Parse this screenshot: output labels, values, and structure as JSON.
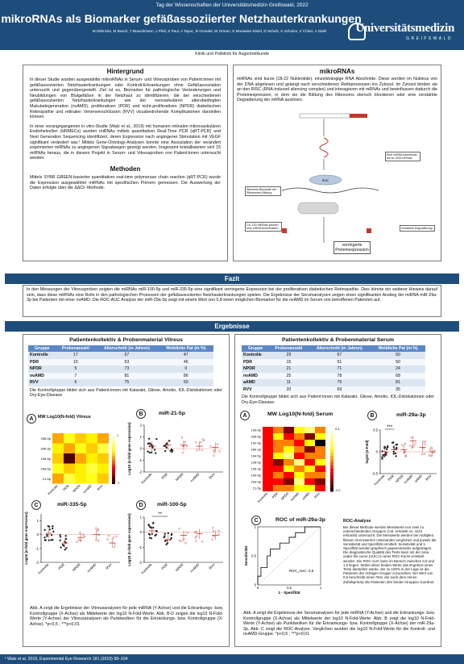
{
  "header": {
    "conference": "Tag der Wissenschaften der Universitätsmedizin Greifswald, 2022",
    "title": "mikroRNAs als Biomarker gefäßassoziierter Netzhauterkrankungen",
    "authors": "M Dähncke, M Busch, T Brauckmann, J Pfeil, S Paul, A Tayar,, B Grundel, W Omran, E Morawiec-Kisiel, D Schulz, K Schulze, V Chisci, A Stahl",
    "logo_name": "Universitätsmedizin",
    "logo_sub": "GREIFSWALD",
    "clinic": "Klinik und Poliklinik für Augenheilkunde"
  },
  "hintergrund": {
    "title": "Hintergrund",
    "p1": "In dieser Studie wurden ausgewählte mikroRNAs in Serum- und Vitreusproben von Patient:innen mit gefäßassoziierten Netzhauterkrankungen oder Kontroll-Erkrankungen ohne Gefäßassoziation untersucht und gegenübergestellt. Ziel ist es, Biomarker für pathologische Veränderungen und Neubildungen von Blutgefäßen in der Netzhaut zu identifizieren, die bei verschiedenen gefäßassoziierten Netzhauterkrankungen wie der neovaskulären altersbedingten Makuladegeneration (nvAMD), proliferativen (PDR) und nicht-proliferativen (NPDR) diabetischen Retinopathie und retinalen Venenverschlüssen (RVV) visusbedrohende Komplikationen darstellen können.",
    "p2": "In einer vorangegangenen in vitro-Studie (Walz et al., 2019) mit humanen retinalen mikrovaskulären Endothelzellen (HRMECs) wurden miRNAs mittels quantitativer Real-Time PCR (qRT-PCR) und Next Generation Sequencing identifiziert, deren Expression nach angiogener Stimulation mit VEGF signifikant verändert war.¹ Mittels Gene-Ontology-Analysen konnte eine Assoziation der verändert exprimierten miRNAs zu angiogenen Signalwegen gezeigt werden. Insgesamt kristallisierten sich 15 miRNAs heraus, die in diesem Projekt in Serum- und Vitreusproben von Patient:innen untersucht werden."
  },
  "methoden": {
    "title": "Methoden",
    "p1": "Mittels SYBR GREEN-basierter quantitativer real-time polymerase chain reaction (qRT-PCR) wurde die Expression ausgewählter miRNAs mit spezifischen Primern gemessen. Die Auswertung der Daten erfolgte über die ΔΔCt- Methode."
  },
  "mikrornas": {
    "title": "mikroRNAs",
    "p1": "miRNAs sind kurze (18-22 Nukleotide), einzelsträngige RNA Abschnitte. Diese werden im Nukleus von der DNA abgelesen und gelangt nach verschiedenen Reifeprozessen ins Zytosol. Im Zytosol binden sie an den RISC (RNA-induced silencing complex) und interagieren mit mRNAs und beeinflussen dadurch die Proteinexpression, in dem sie die Bildung des Ribosoms sterisch blockieren oder eine verstärkte Degradierung der mRNA auslösen.",
    "lbl1": "Eine miRNA beeinflusst bis zu 1000 mRNAs",
    "lbl2": "Sterische Blockade der Ribosomen-Bildung",
    "lbl3": "Ca. 100 miRNAs können eine mRNA beeinflussen",
    "lbl4": "verstärkte Degradierung",
    "risc": "RISC",
    "result": "verringerte Proteinexpression"
  },
  "fazit": {
    "title": "Fazit",
    "text": "In den Messungen der Vitreusproben zeigten die miRNAs miR-100-5p und miR-335-5p eine signifikant verringerte Expression bei der proliferativen diabetischen Retinopathie. Dies könnte ein weiterer Hinweis darauf sein, dass diese miRNAs eine Rolle in den pathologischen Prozessen der gefäßassoziierten Netzhauterkrankungen spielen. Die Ergebnisse der Serumanalysen zeigen einen signifikanten Anstieg der miRNA miR-29a-3p bei Patienten mit einer nvAMD. Die ROC-AUC Analyse der miR-29a-3p zeigt mit einem Wert von 0,8 einen möglichen Biomarker für die nvAMD im Serum von betroffenen Patienten auf."
  },
  "ergebnisse": {
    "title": "Ergebnisse"
  },
  "vitreal": {
    "title": "Patientenkollektiv & Probenmaterial Vitreus",
    "headers": [
      "Gruppe",
      "Probenanzahl",
      "Alterschnitt (in Jahren)",
      "Weibliche Pat (in %)"
    ],
    "rows": [
      [
        "Kontrolle",
        "17",
        "67",
        "47"
      ],
      [
        "PDR",
        "15",
        "53",
        "46"
      ],
      [
        "NPDR",
        "5",
        "73",
        "0"
      ],
      [
        "nvAMD",
        "7",
        "81",
        "86"
      ],
      [
        "RVV",
        "6",
        "75",
        "50"
      ]
    ],
    "note": "Die Kontrollgruppe bildet sich aus Patient:innen mit Katarakt, Gliose, Amotio, IOL-Dislokationen oder Dry-Eye-Disease.",
    "heatmap_title": "MW Log10(N-fold) Vitreus",
    "heat_rows": [
      "338-5p",
      "29b-3p",
      "19d-5p",
      "29a-5p",
      "21-5p"
    ],
    "groups": [
      "Kontrolle",
      "PDR",
      "NPDR",
      "nvAMD",
      "RVV"
    ],
    "b_title": "miR-21-5p",
    "c_title": "miR-335-5p",
    "d_title": "miR-100-5p",
    "ylabel": "Log10 (n-fold gene expression)",
    "sig": "**",
    "caption": "Abb. A zeigt die Ergebnisse der Vitreusanalysen für jede miRNA (Y-Achse) und die Erkrankungs- bzw. Kontrollgruppe (X-Achse) als Mittelwerte der log10 N-Fold-Werte. Abb. B-D zeigen die log10 N-Fold-Werte (Y-Achse) der Vitreusanalysen als Punktwolken für die Erkrankungs- bzw. Kontrollgruppe (X-Achse). *p<0,5 ; ***p<0,01"
  },
  "serum": {
    "title": "Patientenkollektiv & Probenmaterial Serum",
    "headers": [
      "Gruppe",
      "Probenanzahl",
      "Alterschnitt (in Jahren)",
      "Weibliche Pat (in %)"
    ],
    "rows": [
      [
        "Kontrolle",
        "29",
        "67",
        "50"
      ],
      [
        "PDR",
        "15",
        "51",
        "50"
      ],
      [
        "NPDR",
        "21",
        "71",
        "24"
      ],
      [
        "nvAMD",
        "25",
        "78",
        "68"
      ],
      [
        "aAMD",
        "11",
        "79",
        "81"
      ],
      [
        "RVV",
        "20",
        "69",
        "35"
      ]
    ],
    "note": "Die Kontrollgruppe bildet sich aus Patient:innen mit Katarakt, Gliose, Amotio, IOL-Dislokationen oder Dry-Eye-Disease.",
    "heatmap_title": "MW Log10(N-fold) Serum",
    "heat_rows": [
      "139-5p",
      "335-5p",
      "192-5p",
      "29b-3p",
      "194-5p",
      "126-5p",
      "126-3p",
      "100-5p",
      "29a-3p",
      "21-5p"
    ],
    "groups": [
      "Kontrolle",
      "PDR",
      "NPDR",
      "nvAMD",
      "aAMD",
      "RVV"
    ],
    "b_title": "miR-29a-3p",
    "ylabel": "log10 (n-Fold)",
    "sig": "***",
    "roc_title": "ROC of miR-29a-3p",
    "roc_x": "1 - Spezifität",
    "roc_y": "Sensitivität",
    "auc": "ROC_AUC: 0,8",
    "roc_analysis_title": "ROC-Analyse",
    "roc_analysis_text": "Bei dieser Methode werden Messwerte von zwei zu unterscheidenden Gruppen (z.B. erkrankt vs. nicht erkrankt) untersucht. Die Messwerte werden bei multiplen, fiktiven Grenzwerten miteinander verglichen und jeweils die Sensitivität und Spezifität ermittelt. Sensitivität und 1-Spezifität werden graphisch gegeneinander aufgetragen. Die diagnostische Qualität des Tests kann mit der area under the curve (AUC) in einer ROC-Kurve ermittelt werden. Die ROC-AUC kann im Bereich zwischen 0,0 und 1,0 liegen. Wobei diese beiden Werte das Ergebnis eines Tests darstellen würde, der zu 100% in der Lage ist die Patienten der richtigen Gruppe zuzuordnen. Ein Wert von 0,5 beschreibt einen Test, der nach dem reinen Zufallsprinzip die Patienten den beiden Gruppen zuordnet.",
    "caption": "Abb. A zeigt die Ergebnisse der Serumanalysen für jede miRNA (Y-Achse) und die Erkrankungs- bzw. Kontrollgruppe (X-Achse) als Mittelwerte der log10 N-Fold-Werte. Abb. B zeigt die log10 N-Fold-Werte (Y-Achse) als Punktwolken für die Erkrankungs- bzw. Kontrollgruppe (X-Achse) der miR-29a-3p. Abb. C zeigt die ROC-Analyse. Verglichen wurden die log10 N-Fold-Werte für die Kontroll- und nvAMD-Gruppe. *p<0,5 ; ***p<0,01"
  },
  "footer": {
    "ref": "¹ Walz et al. 2019, Experimental Eye Research 181 (2019) 98–104"
  },
  "chart_data": [
    {
      "type": "heatmap",
      "title": "MW Log10(N-fold) Vitreus",
      "rows": [
        "338-5p",
        "29b-3p",
        "19d-5p",
        "29a-5p",
        "21-5p"
      ],
      "cols": [
        "Kontrolle",
        "PDR",
        "NPDR",
        "nvAMD",
        "RVV"
      ],
      "values": [
        [
          0.1,
          0.4,
          0.2,
          0.3,
          0.1
        ],
        [
          0.3,
          0.1,
          0.4,
          0.2,
          0.5
        ],
        [
          0.2,
          -0.8,
          0.1,
          0.3,
          0.2
        ],
        [
          0.4,
          0.2,
          0.3,
          0.5,
          0.3
        ],
        [
          0.1,
          0.5,
          0.3,
          0.4,
          0.2
        ]
      ]
    },
    {
      "type": "scatter",
      "title": "miR-21-5p",
      "groups": [
        "Kontrolle",
        "PDR",
        "NPDR",
        "nvAMD",
        "RVV"
      ],
      "means": [
        0.2,
        0.3,
        0.3,
        0.2,
        0.1
      ],
      "ylim": [
        -2,
        2
      ],
      "yticks": [
        -2,
        -1,
        0,
        1,
        2
      ]
    },
    {
      "type": "scatter",
      "title": "miR-335-5p",
      "groups": [
        "Kontrolle",
        "PDR",
        "NPDR",
        "nvAMD",
        "RVV"
      ],
      "means": [
        0.1,
        -0.6,
        -0.2,
        0.0,
        -0.6
      ],
      "ylim": [
        -2,
        1.5
      ],
      "yticks": [
        -2,
        -1,
        0,
        1
      ]
    },
    {
      "type": "scatter",
      "title": "miR-100-5p",
      "groups": [
        "Kontrolle",
        "PDR",
        "NPDR",
        "nvAMD",
        "RVV"
      ],
      "means": [
        0.1,
        -0.5,
        -0.2,
        -0.1,
        -0.2
      ],
      "ylim": [
        -2,
        1
      ],
      "yticks": [
        -2,
        -1,
        0,
        1
      ]
    },
    {
      "type": "heatmap",
      "title": "MW Log10(N-fold) Serum",
      "rows": [
        "139-5p",
        "335-5p",
        "192-5p",
        "29b-3p",
        "194-5p",
        "126-5p",
        "126-3p",
        "100-5p",
        "29a-3p",
        "21-5p"
      ],
      "cols": [
        "Kontrolle",
        "PDR",
        "NPDR",
        "nvAMD",
        "aAMD",
        "RVV"
      ],
      "values": [
        [
          0.0,
          0.1,
          -0.1,
          0.2,
          0.3,
          0.1
        ],
        [
          0.0,
          0.2,
          0.0,
          0.1,
          -0.1,
          0.2
        ],
        [
          0.0,
          0.1,
          0.1,
          0.0,
          0.2,
          -0.2
        ],
        [
          0.0,
          0.1,
          0.2,
          0.1,
          -0.1,
          0.1
        ],
        [
          0.0,
          0.2,
          0.3,
          0.0,
          0.1,
          0.1
        ],
        [
          0.0,
          -0.1,
          0.1,
          0.3,
          0.0,
          0.2
        ],
        [
          0.0,
          0.0,
          0.2,
          0.1,
          0.2,
          0.0
        ],
        [
          0.0,
          0.1,
          0.0,
          0.2,
          0.1,
          0.1
        ],
        [
          0.0,
          0.0,
          -0.1,
          0.3,
          0.0,
          -0.1
        ],
        [
          0.0,
          0.1,
          0.1,
          0.2,
          0.2,
          0.0
        ]
      ],
      "scale": [
        -0.2,
        0.4
      ]
    },
    {
      "type": "scatter",
      "title": "miR-29a-3p",
      "groups": [
        "Kontrolle",
        "PDR",
        "NPDR",
        "nvAMD",
        "aAMD",
        "RVV"
      ],
      "means": [
        0.0,
        0.05,
        0.05,
        0.25,
        0.1,
        0.0
      ],
      "ylim": [
        -0.5,
        0.5
      ],
      "yticks": [
        -0.5,
        0.0,
        0.5
      ]
    },
    {
      "type": "line",
      "title": "ROC of miR-29a-3p",
      "x": [
        0,
        0,
        0.05,
        0.05,
        0.15,
        0.15,
        0.2,
        0.2,
        0.35,
        0.35,
        0.5,
        0.5,
        0.6,
        0.6,
        0.75,
        0.75,
        0.9,
        1.0
      ],
      "y": [
        0,
        0.15,
        0.15,
        0.3,
        0.3,
        0.5,
        0.5,
        0.62,
        0.62,
        0.72,
        0.72,
        0.82,
        0.82,
        0.9,
        0.9,
        1.0,
        1.0,
        1.0
      ],
      "xlim": [
        0,
        1
      ],
      "ylim": [
        0,
        1
      ],
      "xticks": [
        0,
        0.5,
        1
      ],
      "yticks": [
        0,
        0.5,
        1
      ],
      "auc": "0,8"
    }
  ]
}
